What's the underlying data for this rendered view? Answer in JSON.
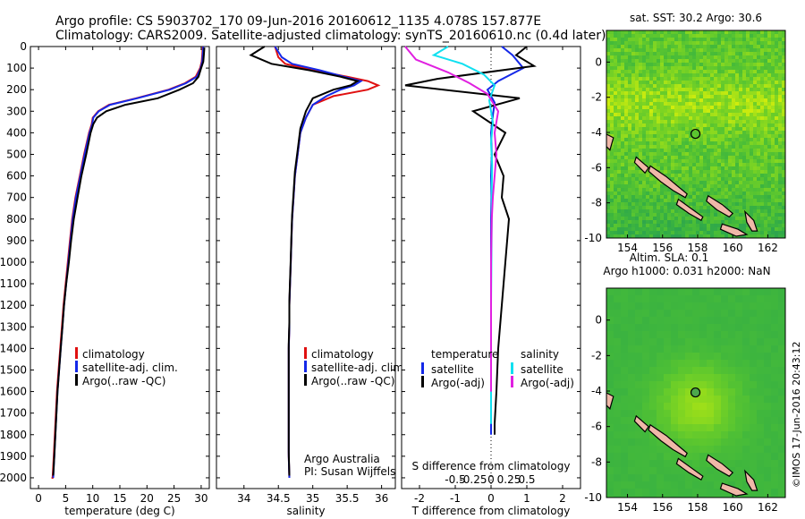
{
  "header": {
    "line1": "Argo profile: CS 5903702_170 09-Jun-2016 20160612_1135 4.078S 157.877E",
    "line2": "Climatology: CARS2009. Satellite-adjusted climatology: synTS_20160610.nc (0.4d later)"
  },
  "colors": {
    "climatology": "#e01010",
    "satellite": "#1428e8",
    "argo": "#000000",
    "salinity_satellite": "#10e0f0",
    "salinity_argo": "#e020e0",
    "land": "#f0b8a8"
  },
  "depth_axis": {
    "ylim": [
      0,
      2050
    ],
    "ticks": [
      0,
      100,
      200,
      300,
      400,
      500,
      600,
      700,
      800,
      900,
      1000,
      1100,
      1200,
      1300,
      1400,
      1500,
      1600,
      1700,
      1800,
      1900,
      2000
    ]
  },
  "chart_data": [
    {
      "type": "line",
      "panel": "temperature",
      "xlabel": "temperature (deg C)",
      "xlim": [
        -1.5,
        31.5
      ],
      "xticks": [
        0,
        5,
        10,
        15,
        20,
        25,
        30
      ],
      "legend": [
        "climatology",
        "satellite-adj. clim.",
        "Argo(..raw -QC)"
      ],
      "series": [
        {
          "name": "climatology",
          "color_key": "climatology",
          "x": [
            30.3,
            30.2,
            30.1,
            29.8,
            29,
            27,
            24,
            18,
            13,
            11,
            10,
            9.8,
            9.3,
            8.4,
            7.6,
            6.8,
            6.2,
            5.8,
            5.4,
            5.0,
            4.6,
            4.3,
            4.0,
            3.7,
            3.4,
            3.2,
            3.0,
            2.8,
            2.6,
            2.4
          ],
          "y": [
            0,
            40,
            70,
            100,
            140,
            170,
            200,
            240,
            270,
            300,
            330,
            360,
            400,
            500,
            600,
            700,
            800,
            900,
            1000,
            1100,
            1200,
            1300,
            1400,
            1500,
            1600,
            1700,
            1800,
            1900,
            2000,
            2000
          ]
        },
        {
          "name": "satellite-adj. clim.",
          "color_key": "satellite",
          "x": [
            30.4,
            30.3,
            30.2,
            29.9,
            29.2,
            27.2,
            24.2,
            18.2,
            13.2,
            11.1,
            10.1,
            9.9,
            9.4,
            8.5,
            7.7,
            6.9,
            6.3,
            5.9,
            5.5,
            5.1,
            4.7,
            4.4,
            4.1,
            3.8,
            3.5,
            3.3,
            3.1,
            2.9,
            2.7
          ],
          "y": [
            0,
            40,
            70,
            100,
            140,
            170,
            200,
            240,
            270,
            300,
            330,
            360,
            400,
            500,
            600,
            700,
            800,
            900,
            1000,
            1100,
            1200,
            1300,
            1400,
            1500,
            1600,
            1700,
            1800,
            1900,
            2000
          ]
        },
        {
          "name": "Argo(..raw -QC)",
          "color_key": "argo",
          "x": [
            30.6,
            30.5,
            30.4,
            30.0,
            29.5,
            28.5,
            26,
            22,
            16,
            12.5,
            10.8,
            10.1,
            9.6,
            8.8,
            7.9,
            7.2,
            6.5,
            6.0,
            5.6,
            5.1,
            4.7,
            4.4,
            4.1,
            3.8,
            3.5,
            3.3,
            3.1,
            2.9,
            2.7
          ],
          "y": [
            5,
            40,
            70,
            100,
            140,
            170,
            200,
            240,
            270,
            300,
            330,
            360,
            400,
            500,
            600,
            700,
            800,
            900,
            1000,
            1100,
            1200,
            1300,
            1400,
            1500,
            1600,
            1700,
            1800,
            1900,
            1990
          ]
        }
      ]
    },
    {
      "type": "line",
      "panel": "salinity",
      "xlabel": "salinity",
      "xlim": [
        33.6,
        36.2
      ],
      "xticks": [
        34,
        34.5,
        35,
        35.5,
        36
      ],
      "legend": [
        "climatology",
        "satellite-adj. clim.",
        "Argo(..raw -QC)"
      ],
      "annotation": [
        "Argo Australia",
        "PI: Susan Wijffels"
      ],
      "series": [
        {
          "name": "climatology",
          "color_key": "climatology",
          "x": [
            34.45,
            34.5,
            34.6,
            35.0,
            35.5,
            35.8,
            35.95,
            35.8,
            35.3,
            35.0,
            34.9,
            34.82,
            34.78,
            34.74,
            34.72,
            34.7,
            34.69,
            34.68,
            34.67,
            34.66,
            34.66,
            34.65,
            34.65,
            34.65,
            34.65,
            34.65,
            34.65,
            34.66
          ],
          "y": [
            0,
            50,
            80,
            110,
            140,
            160,
            180,
            200,
            230,
            270,
            330,
            400,
            500,
            600,
            700,
            800,
            900,
            1000,
            1100,
            1200,
            1300,
            1400,
            1500,
            1600,
            1700,
            1800,
            1900,
            2000
          ]
        },
        {
          "name": "satellite-adj. clim.",
          "color_key": "satellite",
          "x": [
            34.45,
            34.55,
            34.7,
            35.1,
            35.45,
            35.7,
            35.6,
            35.4,
            35.2,
            35.0,
            34.9,
            34.82,
            34.78,
            34.74,
            34.72,
            34.7,
            34.69,
            34.68,
            34.67,
            34.66,
            34.66,
            34.65,
            34.65,
            34.65,
            34.65,
            34.65,
            34.65,
            34.66
          ],
          "y": [
            0,
            50,
            80,
            110,
            140,
            160,
            180,
            200,
            230,
            270,
            330,
            400,
            500,
            600,
            700,
            800,
            900,
            1000,
            1100,
            1200,
            1300,
            1400,
            1500,
            1600,
            1700,
            1800,
            1900,
            2000
          ]
        },
        {
          "name": "Argo(..raw -QC)",
          "color_key": "argo",
          "x": [
            34.3,
            34.1,
            34.4,
            34.95,
            35.4,
            35.65,
            35.55,
            35.3,
            35.0,
            34.9,
            34.82,
            34.78,
            34.74,
            34.72,
            34.7,
            34.69,
            34.68,
            34.67,
            34.66,
            34.66,
            34.65,
            34.65,
            34.65,
            34.65,
            34.65,
            34.65,
            34.66
          ],
          "y": [
            0,
            40,
            80,
            110,
            140,
            160,
            180,
            200,
            240,
            300,
            380,
            480,
            580,
            680,
            780,
            880,
            980,
            1080,
            1180,
            1280,
            1380,
            1480,
            1580,
            1680,
            1780,
            1880,
            1990
          ]
        }
      ]
    },
    {
      "type": "line",
      "panel": "difference",
      "xlabel": "T difference from climatology",
      "x2label": "S difference from climatology",
      "xlim": [
        -2.5,
        2.5
      ],
      "xticks": [
        -2,
        -1,
        0,
        1,
        2
      ],
      "x2ticks": [
        "-0.5",
        "-0.25",
        "0",
        "0.25",
        "0.5"
      ],
      "legend": [
        "temperature",
        "satellite",
        "Argo(-adj)",
        "salinity",
        "satellite",
        "Argo(-adj)"
      ],
      "series": [
        {
          "name": "temperature satellite",
          "color_key": "satellite",
          "x": [
            0.3,
            0.6,
            0.9,
            0.2,
            -0.1,
            0.1,
            0.05,
            0,
            0.02,
            0,
            0.01,
            0,
            0,
            0,
            0,
            0,
            0,
            0,
            0
          ],
          "y": [
            0,
            40,
            100,
            160,
            200,
            260,
            320,
            400,
            500,
            600,
            700,
            800,
            900,
            1000,
            1200,
            1400,
            1600,
            1750,
            1800
          ]
        },
        {
          "name": "temperature Argo(-adj)",
          "color_key": "argo",
          "x": [
            1.0,
            0.7,
            1.2,
            -1.5,
            -2.4,
            0.8,
            -0.5,
            0.4,
            0.1,
            0.35,
            0.3,
            0.5,
            0.45,
            0.4,
            0.3,
            0.2,
            0.15,
            0.1,
            0.1
          ],
          "y": [
            0,
            40,
            90,
            150,
            180,
            240,
            300,
            400,
            500,
            600,
            700,
            800,
            900,
            1000,
            1200,
            1400,
            1600,
            1750,
            1800
          ]
        },
        {
          "name": "salinity satellite",
          "color_key": "salinity_satellite",
          "x": [
            -1.2,
            -1.6,
            -0.8,
            -0.2,
            0.1,
            -0.05,
            0.05,
            0,
            0.03,
            0.02,
            0.02,
            0.01,
            0,
            0,
            0,
            0
          ],
          "y": [
            0,
            40,
            80,
            130,
            180,
            250,
            350,
            450,
            550,
            650,
            800,
            1000,
            1200,
            1400,
            1600,
            1750
          ]
        },
        {
          "name": "salinity Argo(-adj)",
          "color_key": "salinity_argo",
          "x": [
            -2.4,
            -2.1,
            -1.2,
            -0.6,
            -0.1,
            0.2,
            0.1,
            0.15,
            0.1,
            0.05,
            0.02,
            0,
            0,
            0
          ],
          "y": [
            0,
            60,
            120,
            170,
            220,
            300,
            400,
            500,
            600,
            700,
            800,
            1000,
            1300,
            1600
          ]
        }
      ]
    },
    {
      "type": "heatmap",
      "panel": "sst_map",
      "title": "sat. SST: 30.2  Argo: 30.6",
      "xlim": [
        152.8,
        163.0
      ],
      "ylim": [
        -10,
        1.8
      ],
      "xticks": [
        154,
        156,
        158,
        160,
        162
      ],
      "yticks": [
        0,
        -2,
        -4,
        -6,
        -8,
        -10
      ],
      "marker": {
        "lon": 157.877,
        "lat": -4.078
      }
    },
    {
      "type": "heatmap",
      "panel": "sla_map",
      "title": "Altim. SLA: 0.1",
      "subtitle": "Argo h1000: 0.031  h2000: NaN",
      "xlim": [
        152.8,
        163.0
      ],
      "ylim": [
        -10,
        1.8
      ],
      "xticks": [
        154,
        156,
        158,
        160,
        162
      ],
      "yticks": [
        0,
        -2,
        -4,
        -6,
        -8,
        -10
      ],
      "marker": {
        "lon": 157.877,
        "lat": -4.078
      }
    }
  ],
  "credit": "©IMOS 17-Jun-2016 20:43:12"
}
